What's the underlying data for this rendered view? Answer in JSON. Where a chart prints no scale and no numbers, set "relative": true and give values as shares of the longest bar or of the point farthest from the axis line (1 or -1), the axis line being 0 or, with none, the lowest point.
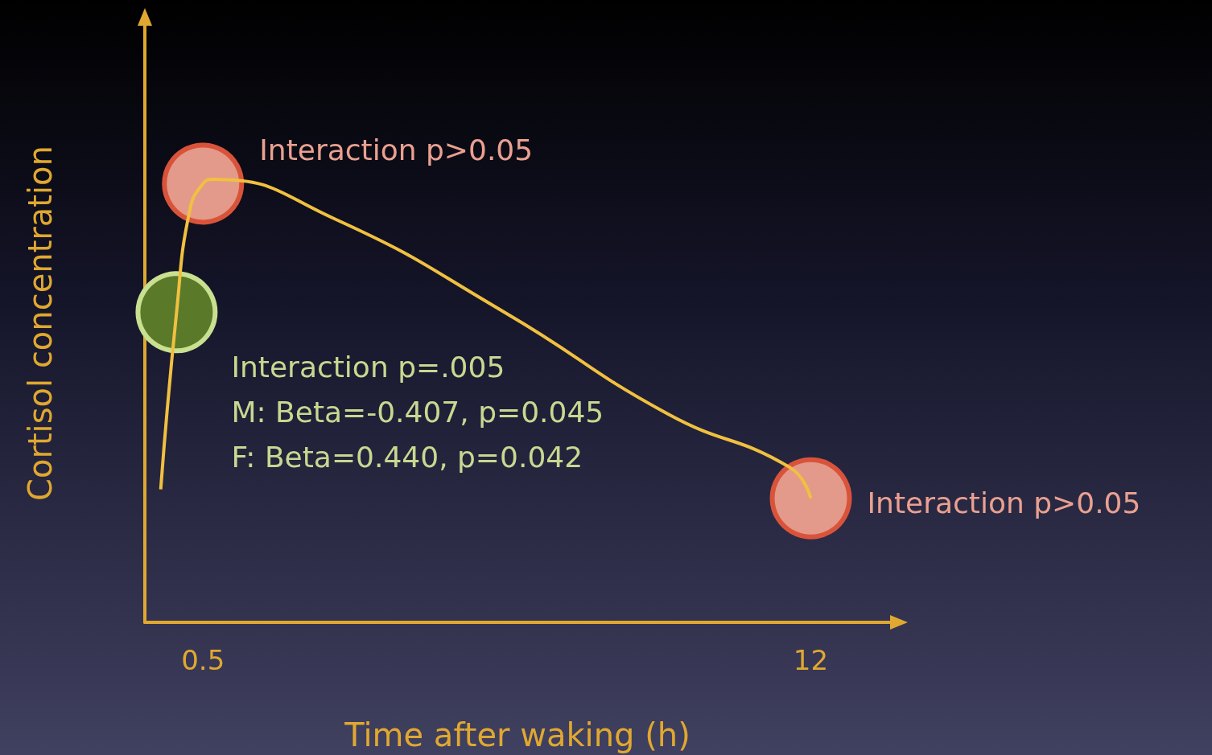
{
  "chart_data": {
    "type": "line",
    "relative": true,
    "xlabel": "Time after waking (h)",
    "ylabel": "Cortisol concentration",
    "xlim": [
      -0.6,
      13.5
    ],
    "xticks": [
      0.5,
      12
    ],
    "series": [
      {
        "color": "#f0c040",
        "marker": "none",
        "x": [
          -0.3,
          0,
          0.25,
          0.5,
          0.7,
          3,
          6.2,
          9.3,
          11.6,
          12
        ],
        "values": [
          0.3,
          0.7,
          0.93,
          0.99,
          1.0,
          0.91,
          0.7,
          0.47,
          0.35,
          0.28
        ]
      },
      {
        "type": "scatter",
        "marker": "circle",
        "x": [
          0,
          0.5,
          12
        ],
        "values": [
          0.7,
          0.99,
          0.28
        ],
        "colors": [
          "#5a7a2a",
          "#e39a8a",
          "#e39a8a"
        ]
      }
    ],
    "annotations": [
      {
        "text": "Interaction p=.005\nM: Beta=-0.407, p=0.045\nF: Beta=0.440, p=0.042",
        "x": 0,
        "y": 0.7
      },
      {
        "text": "Interaction p>0.05",
        "x": 0.5,
        "y": 0.99
      },
      {
        "text": "Interaction p>0.05",
        "x": 12,
        "y": 0.28
      }
    ]
  }
}
